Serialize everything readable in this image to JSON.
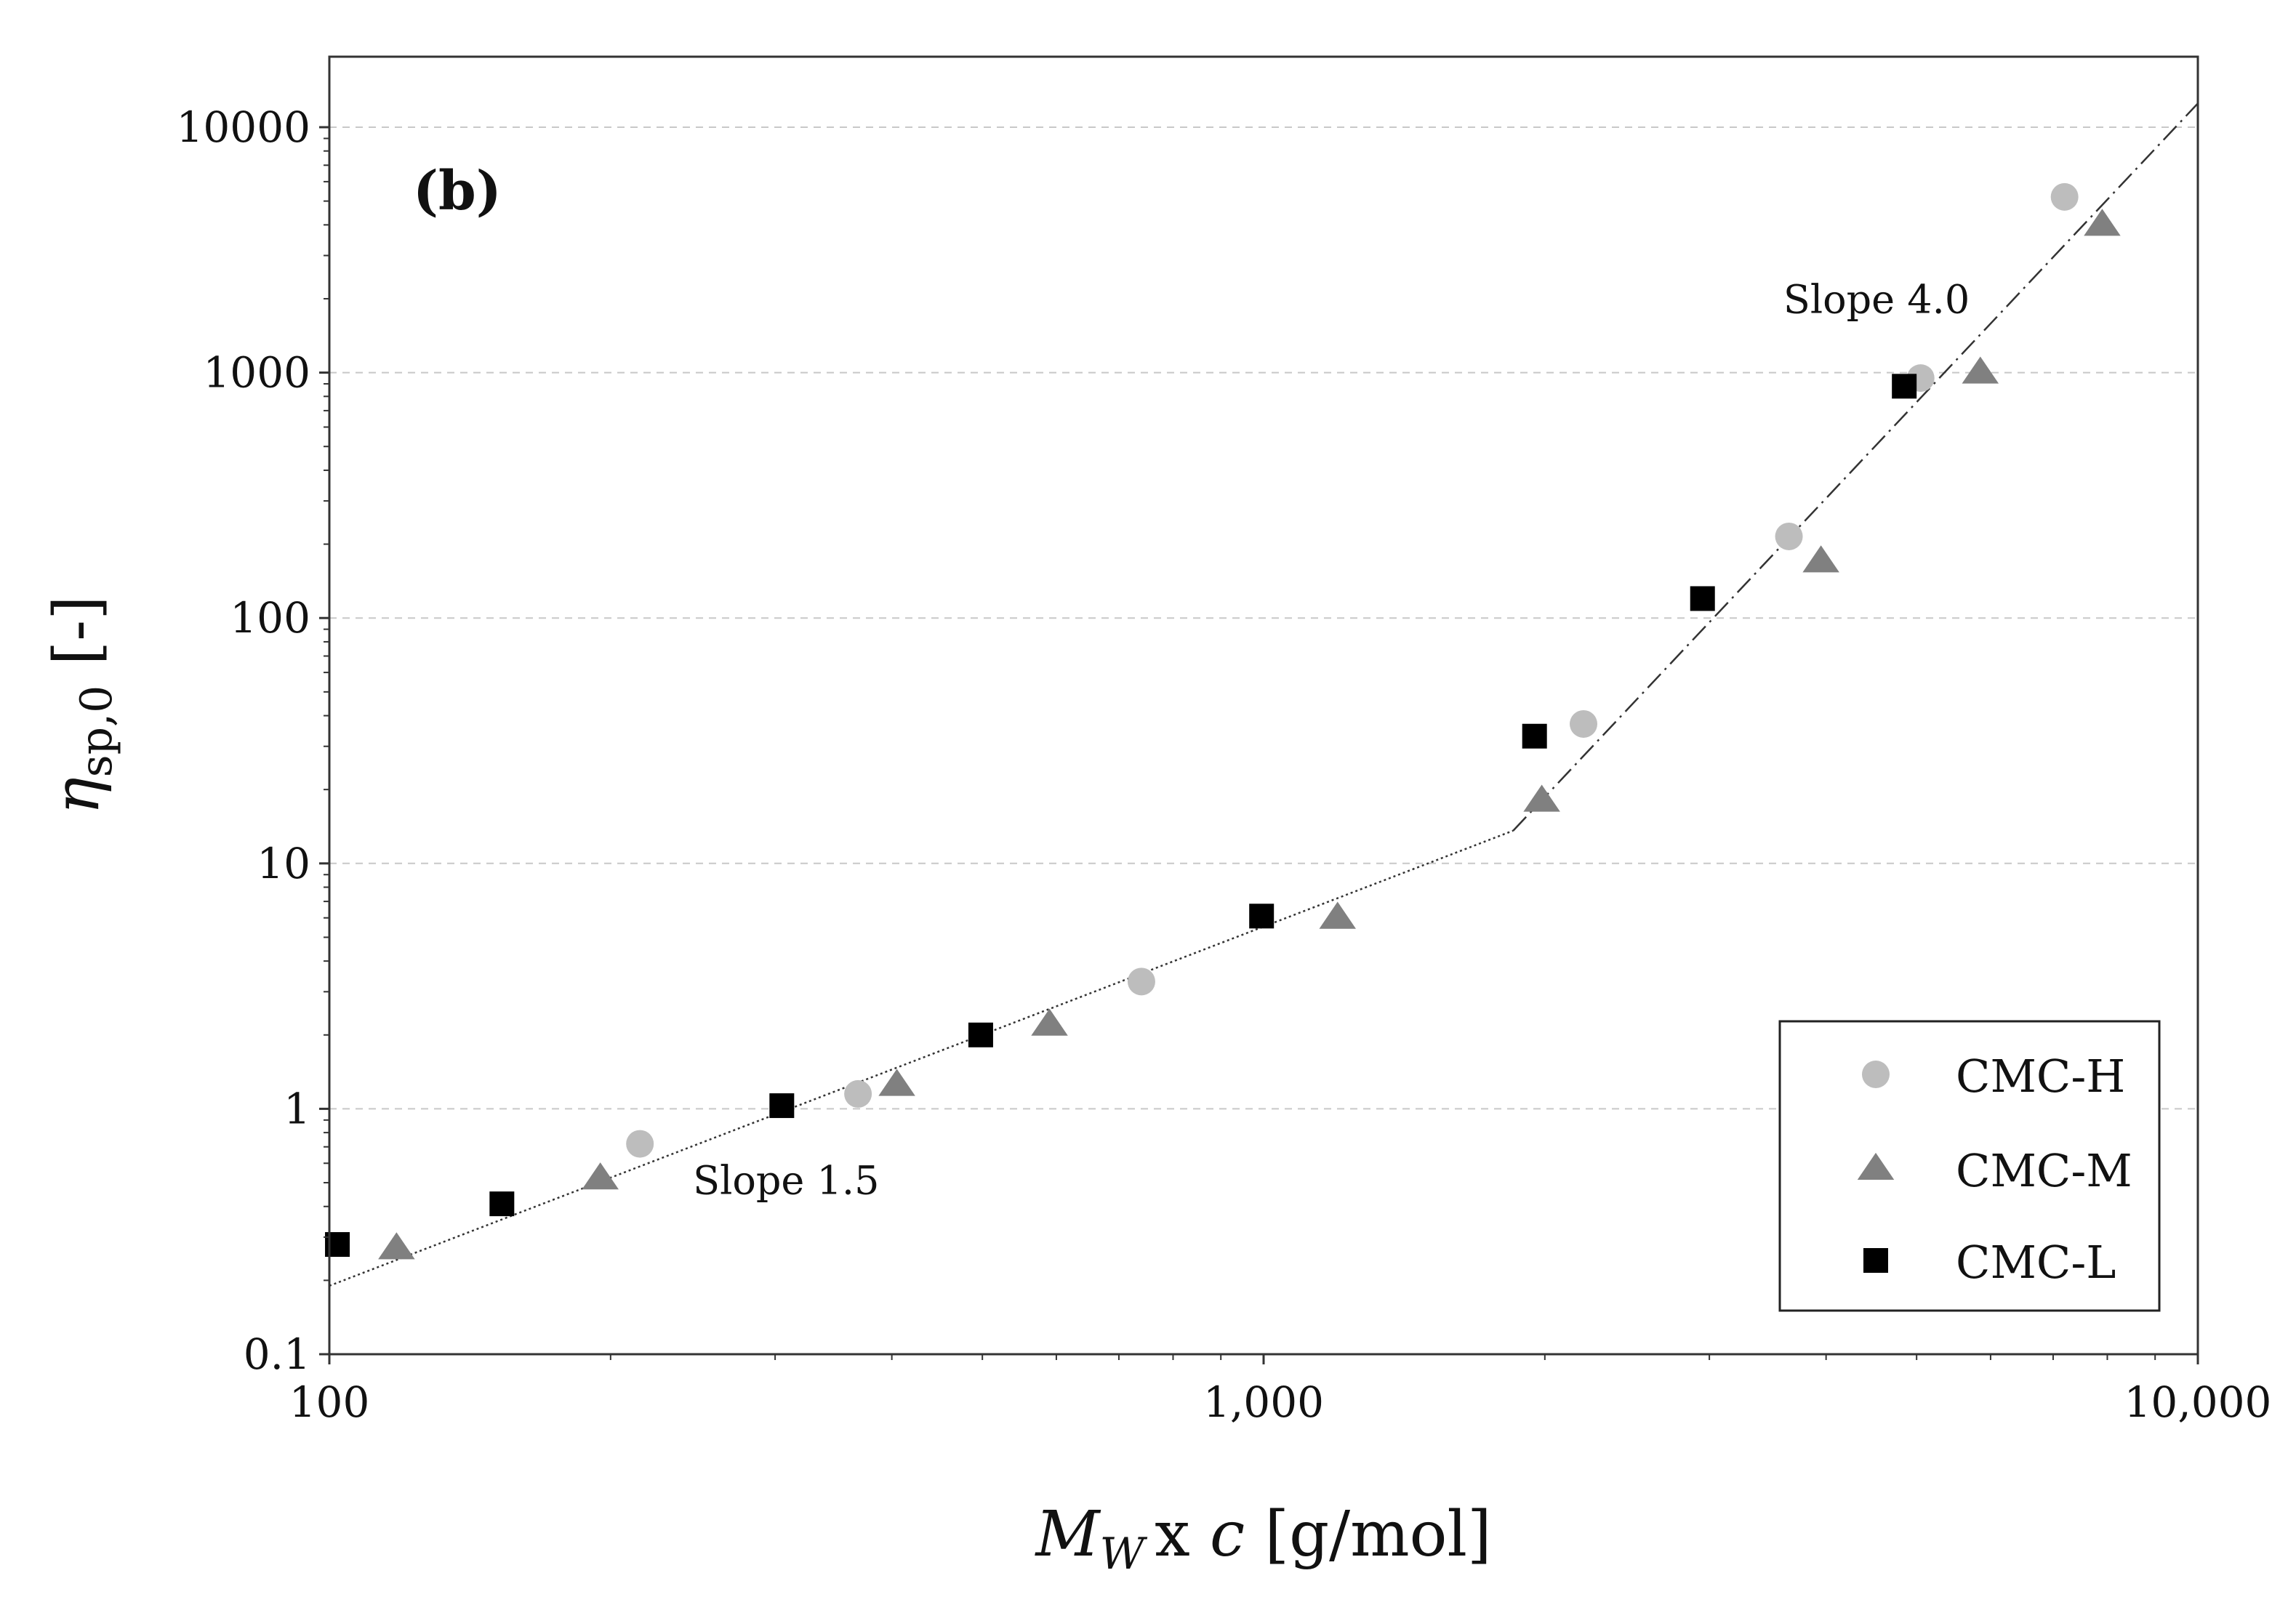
{
  "chart_data": {
    "type": "scatter",
    "panel_label": "(b)",
    "xscale": "log",
    "yscale": "log",
    "xlim": [
      100,
      10000
    ],
    "ylim": [
      0.1,
      20000
    ],
    "xticks": [
      {
        "value": 100,
        "label": "100"
      },
      {
        "value": 1000,
        "label": "1,000"
      },
      {
        "value": 10000,
        "label": "10,000"
      }
    ],
    "yticks": [
      {
        "value": 0.1,
        "label": "0.1"
      },
      {
        "value": 1,
        "label": "1"
      },
      {
        "value": 10,
        "label": "10"
      },
      {
        "value": 100,
        "label": "100"
      },
      {
        "value": 1000,
        "label": "1000"
      },
      {
        "value": 10000,
        "label": "10000"
      }
    ],
    "grid": "horizontal dashed",
    "xlabel": {
      "symbol": "M",
      "sub": "W",
      "rest": "x ",
      "var": "c",
      "unit": " [g/mol]"
    },
    "ylabel": {
      "symbol": "η",
      "sub": "sp,0",
      "unit": " [-]"
    },
    "series": [
      {
        "name": "CMC-H",
        "marker": "circle",
        "color": "#bdbdbd",
        "points": [
          [
            215,
            0.72
          ],
          [
            368,
            1.15
          ],
          [
            740,
            3.3
          ],
          [
            2200,
            37
          ],
          [
            3650,
            215
          ],
          [
            5050,
            950
          ],
          [
            7200,
            5200
          ]
        ]
      },
      {
        "name": "CMC-M",
        "marker": "triangle",
        "color": "#808080",
        "points": [
          [
            118,
            0.27
          ],
          [
            195,
            0.52
          ],
          [
            405,
            1.25
          ],
          [
            590,
            2.2
          ],
          [
            1200,
            6.0
          ],
          [
            1985,
            18
          ],
          [
            3950,
            170
          ],
          [
            5850,
            1000
          ],
          [
            7900,
            4000
          ]
        ]
      },
      {
        "name": "CMC-L",
        "marker": "square",
        "color": "#000000",
        "points": [
          [
            102,
            0.28
          ],
          [
            153,
            0.41
          ],
          [
            305,
            1.03
          ],
          [
            498,
            2.0
          ],
          [
            995,
            6.1
          ],
          [
            1950,
            33
          ],
          [
            2950,
            120
          ],
          [
            4850,
            880
          ]
        ]
      }
    ],
    "fit_lines": [
      {
        "label": "Slope 1.5",
        "slope": 1.5,
        "from": [
          100,
          0.19
        ],
        "to": [
          1850,
          13.6
        ]
      },
      {
        "label": "Slope 4.0",
        "slope": 4.0,
        "from": [
          1850,
          13.6
        ],
        "to": [
          10000,
          12500
        ]
      }
    ],
    "annotations": [
      {
        "text": "Slope 1.5",
        "at": [
          245,
          0.45
        ]
      },
      {
        "text": "Slope 4.0",
        "at": [
          3600,
          1750
        ]
      }
    ],
    "legend": {
      "position": "bottom-right",
      "entries": [
        "CMC-H",
        "CMC-M",
        "CMC-L"
      ]
    }
  }
}
